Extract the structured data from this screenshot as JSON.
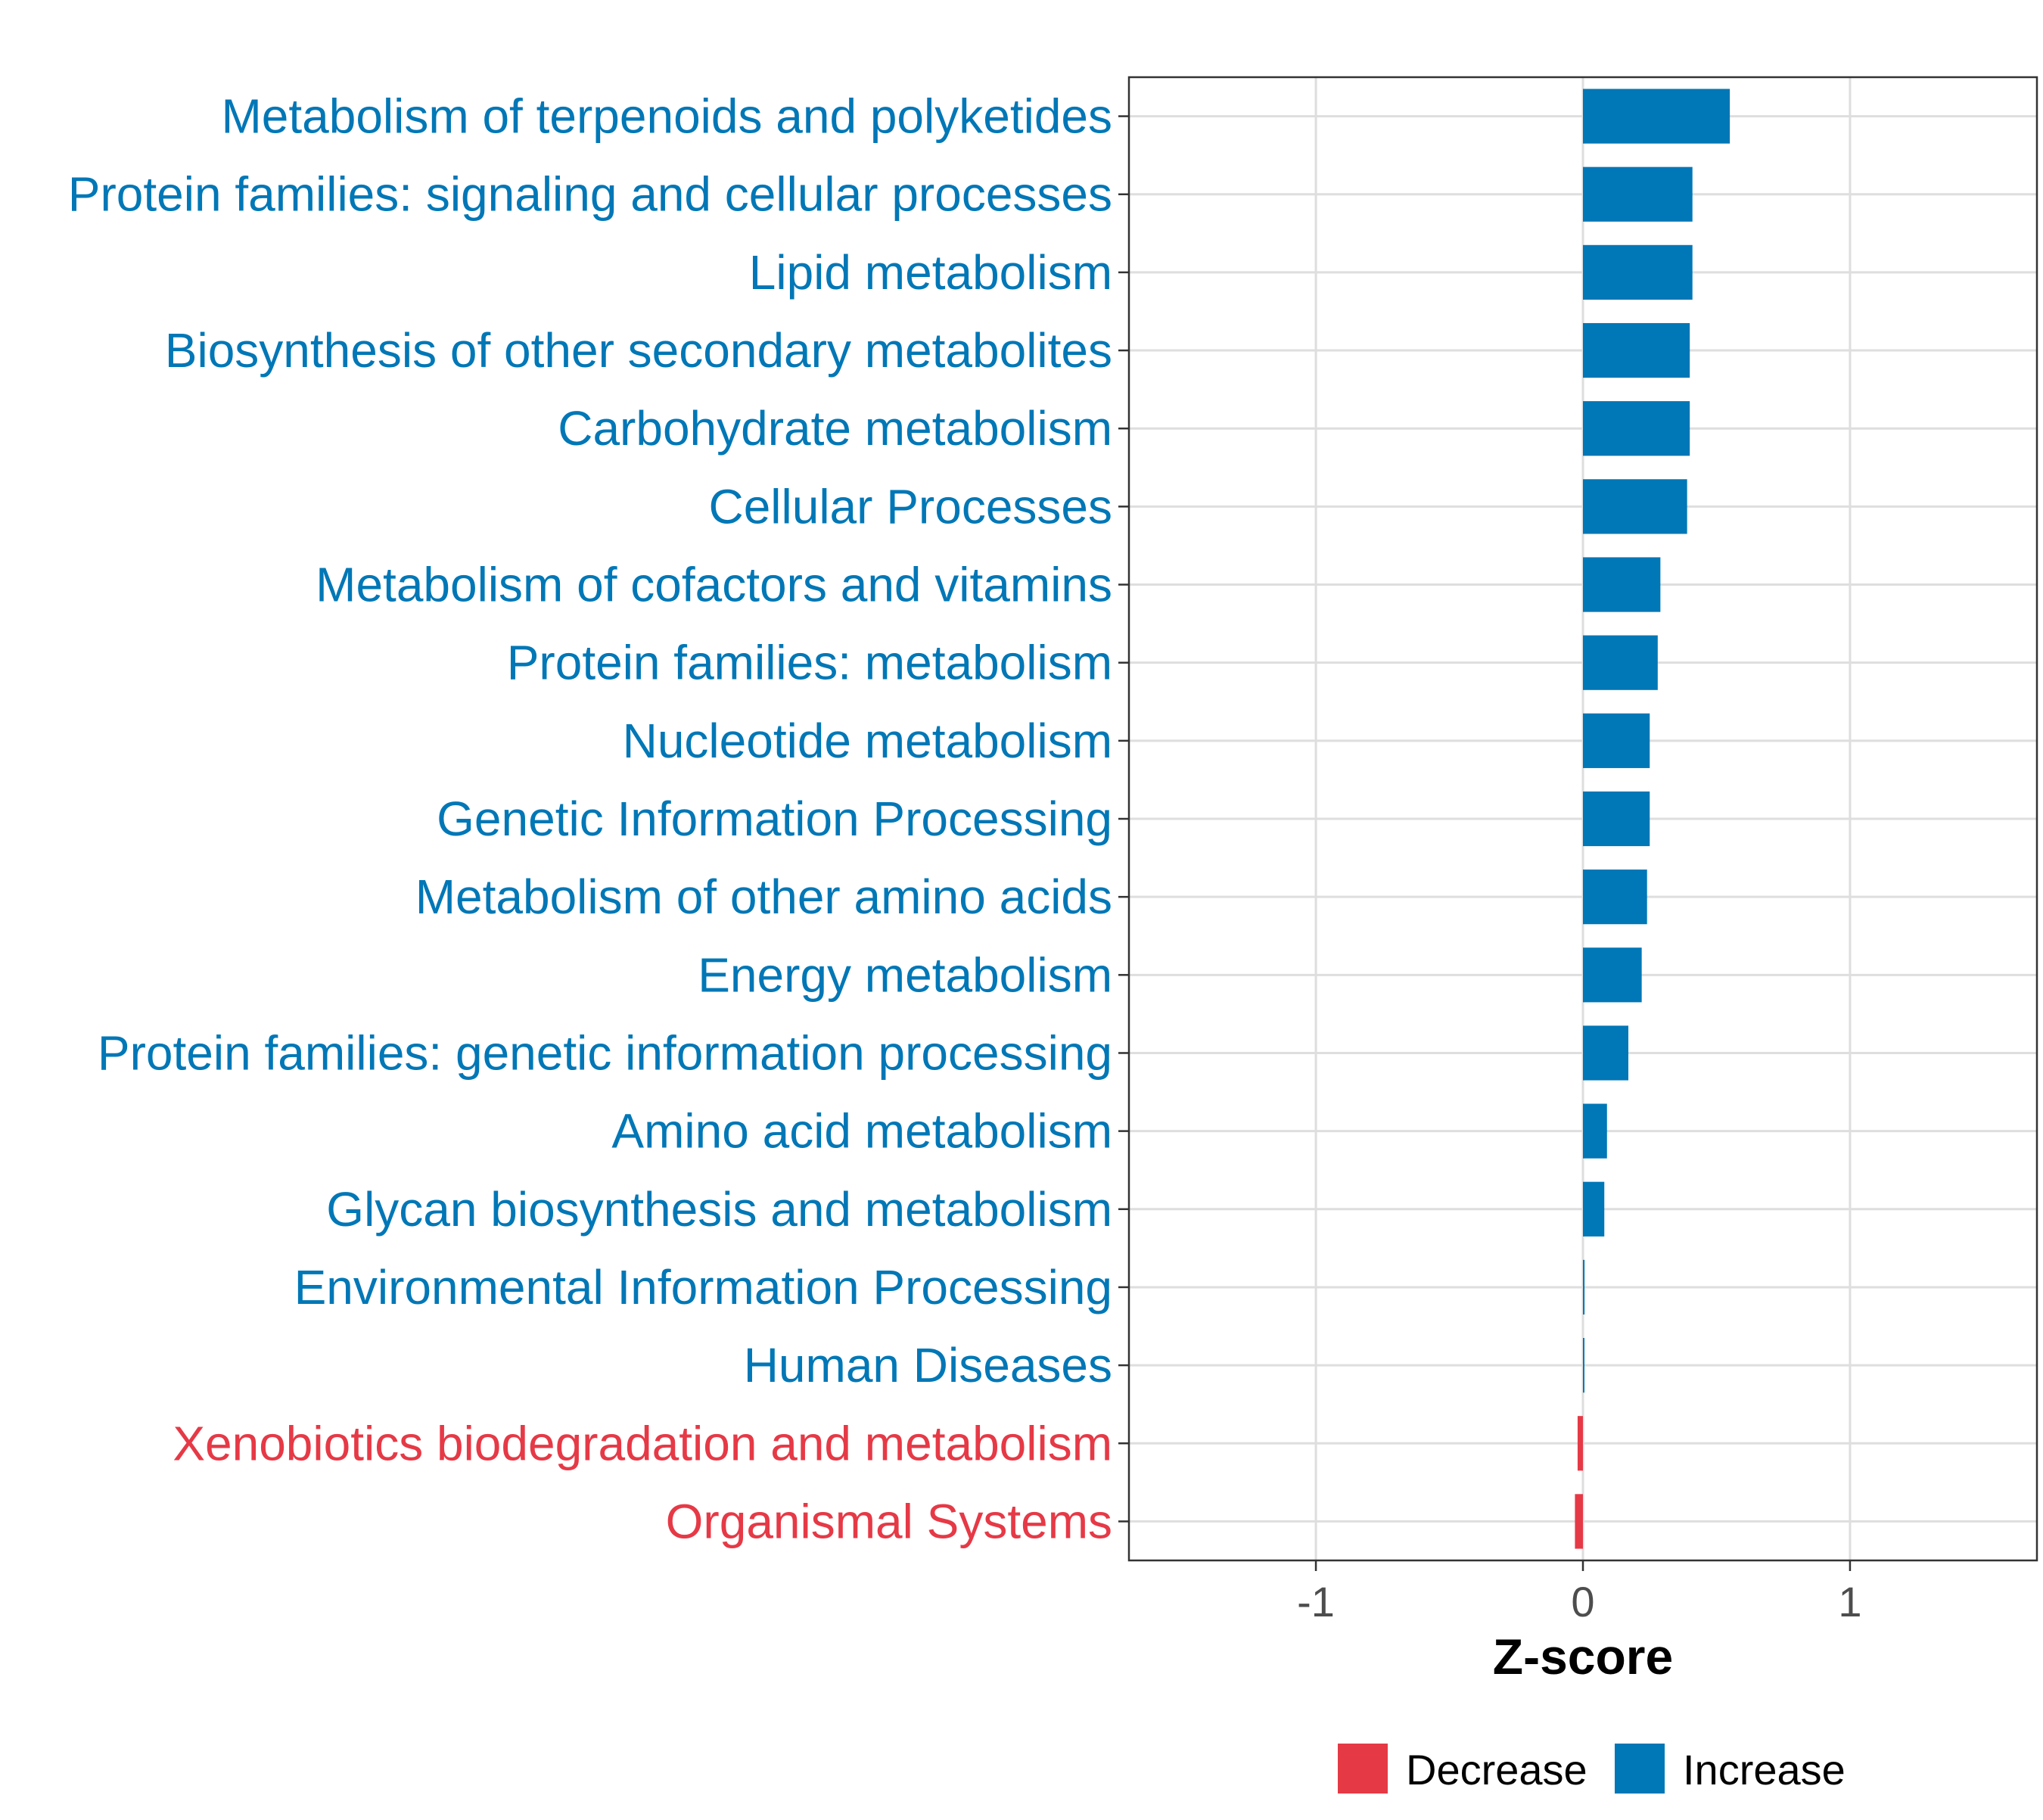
{
  "chart_data": {
    "type": "bar",
    "orientation": "horizontal",
    "xlabel": "Z-score",
    "ylabel": "",
    "xlim": [
      -1.7,
      1.7
    ],
    "xticks": [
      -1,
      0,
      1
    ],
    "xtick_labels": [
      "-1",
      "0",
      "1"
    ],
    "grid": true,
    "categories": [
      "Metabolism of terpenoids and polyketides",
      "Protein families: signaling and cellular processes",
      "Lipid metabolism",
      "Biosynthesis of other secondary metabolites",
      "Carbohydrate metabolism",
      "Cellular Processes",
      "Metabolism of cofactors and vitamins",
      "Protein families: metabolism",
      "Nucleotide metabolism",
      "Genetic Information Processing",
      "Metabolism of other amino acids",
      "Energy metabolism",
      "Protein families: genetic information processing",
      "Amino acid metabolism",
      "Glycan biosynthesis and metabolism",
      "Environmental Information Processing",
      "Human Diseases",
      "Xenobiotics biodegradation and metabolism",
      "Organismal Systems"
    ],
    "values": [
      0.55,
      0.41,
      0.41,
      0.4,
      0.4,
      0.39,
      0.29,
      0.28,
      0.25,
      0.25,
      0.24,
      0.22,
      0.17,
      0.09,
      0.08,
      0.006,
      0.003,
      -0.02,
      -0.03
    ],
    "groups": [
      "Increase",
      "Increase",
      "Increase",
      "Increase",
      "Increase",
      "Increase",
      "Increase",
      "Increase",
      "Increase",
      "Increase",
      "Increase",
      "Increase",
      "Increase",
      "Increase",
      "Increase",
      "Increase",
      "Increase",
      "Decrease",
      "Decrease"
    ],
    "legend": {
      "placement": "bottom",
      "entries": [
        {
          "label": "Decrease",
          "color": "#E63946"
        },
        {
          "label": "Increase",
          "color": "#0077B6"
        }
      ]
    }
  }
}
